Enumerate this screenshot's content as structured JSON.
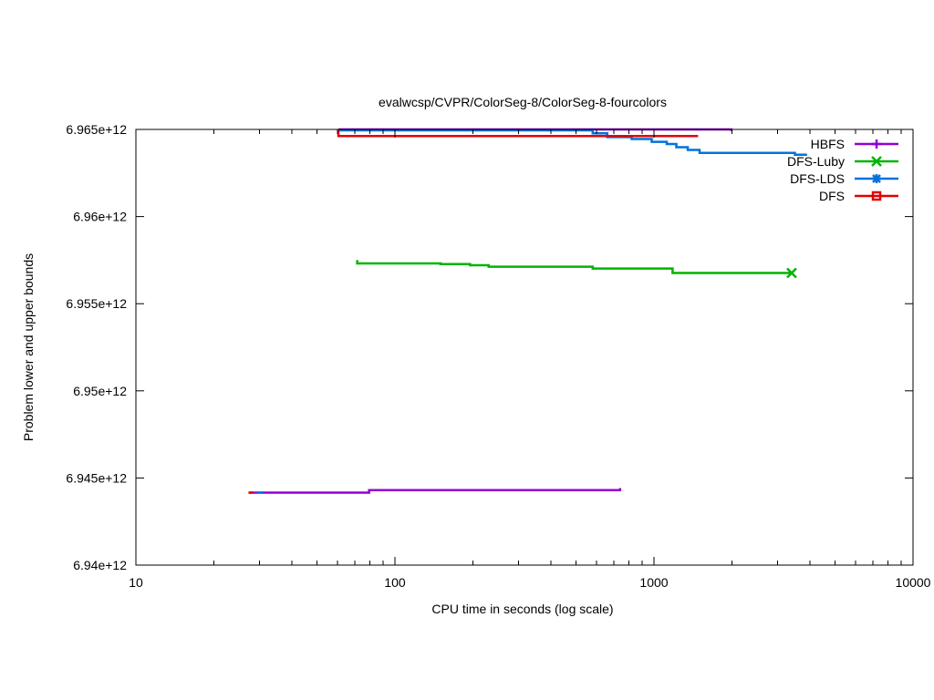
{
  "chart_data": {
    "type": "line",
    "title": "evalwcsp/CVPR/ColorSeg-8/ColorSeg-8-fourcolors",
    "xlabel": "CPU time in seconds (log scale)",
    "ylabel": "Problem lower and upper bounds",
    "xscale": "log",
    "xlim": [
      10,
      10000
    ],
    "ylim": [
      6940000000000,
      6965000000000
    ],
    "x_ticks": [
      10,
      100,
      1000,
      10000
    ],
    "x_tick_labels": [
      "10",
      "100",
      "1000",
      "10000"
    ],
    "y_ticks": [
      6940000000000,
      6945000000000,
      6950000000000,
      6955000000000,
      6960000000000,
      6965000000000
    ],
    "y_tick_labels": [
      "6.94e+12",
      "6.945e+12",
      "6.95e+12",
      "6.955e+12",
      "6.96e+12",
      "6.965e+12"
    ],
    "grid": false,
    "legend_position": "top-right",
    "series": [
      {
        "name": "HBFS",
        "color": "#9400d3",
        "marker": "plus",
        "steps": [
          [
            [
              60.5,
              6965000000000
            ],
            [
              1990,
              6965000000000
            ],
            [
              1990,
              6964900000000
            ]
          ],
          [
            [
              27.5,
              6944160000000
            ],
            [
              79.5,
              6944160000000
            ],
            [
              79.5,
              6944300000000
            ],
            [
              740,
              6944300000000
            ],
            [
              740,
              6944420000000
            ]
          ]
        ]
      },
      {
        "name": "DFS-Luby",
        "color": "#00b400",
        "marker": "x",
        "steps": [
          [
            [
              71.5,
              6957500000000
            ],
            [
              71.5,
              6957310000000
            ],
            [
              150,
              6957310000000
            ],
            [
              150,
              6957270000000
            ],
            [
              195,
              6957270000000
            ],
            [
              195,
              6957210000000
            ],
            [
              230,
              6957210000000
            ],
            [
              230,
              6957120000000
            ],
            [
              580,
              6957120000000
            ],
            [
              580,
              6957020000000
            ],
            [
              1180,
              6957020000000
            ],
            [
              1180,
              6956760000000
            ],
            [
              3400,
              6956760000000
            ]
          ]
        ],
        "end_marker": [
          3400,
          6956760000000
        ]
      },
      {
        "name": "DFS-LDS",
        "color": "#0072dc",
        "marker": "asterisk",
        "steps": [
          [
            [
              60.5,
              6964950000000
            ],
            [
              580,
              6964950000000
            ],
            [
              580,
              6964780000000
            ],
            [
              660,
              6964780000000
            ],
            [
              660,
              6964560000000
            ],
            [
              820,
              6964560000000
            ],
            [
              820,
              6964450000000
            ],
            [
              980,
              6964450000000
            ],
            [
              980,
              6964290000000
            ],
            [
              1120,
              6964290000000
            ],
            [
              1120,
              6964160000000
            ],
            [
              1220,
              6964160000000
            ],
            [
              1220,
              6963980000000
            ],
            [
              1350,
              6963980000000
            ],
            [
              1350,
              6963820000000
            ],
            [
              1500,
              6963820000000
            ],
            [
              1500,
              6963650000000
            ],
            [
              3500,
              6963650000000
            ],
            [
              3500,
              6963550000000
            ],
            [
              3900,
              6963550000000
            ]
          ],
          [
            [
              29.5,
              6944160000000
            ],
            [
              31,
              6944160000000
            ]
          ]
        ]
      },
      {
        "name": "DFS",
        "color": "#e30000",
        "marker": "square",
        "steps": [
          [
            [
              60.5,
              6965000000000
            ],
            [
              60.5,
              6964620000000
            ],
            [
              1480,
              6964620000000
            ]
          ],
          [
            [
              27.2,
              6944160000000
            ],
            [
              28.3,
              6944160000000
            ]
          ]
        ]
      }
    ]
  }
}
